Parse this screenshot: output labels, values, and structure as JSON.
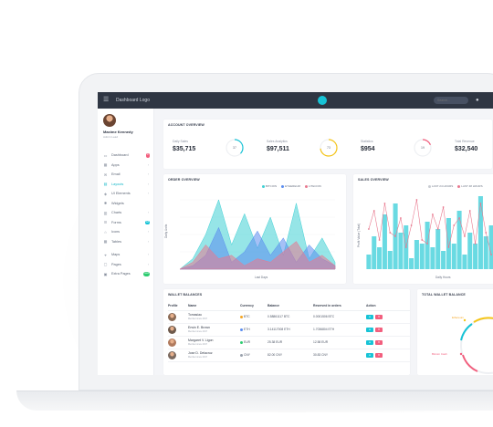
{
  "topbar": {
    "menu_icon": "hamburger-icon",
    "logo": "Dashboard Logo",
    "search_placeholder": "Search...",
    "user_icon": "user-icon",
    "accent": "#17c3d6"
  },
  "profile": {
    "name": "Maxime Kennedy",
    "role": "Admin Lead"
  },
  "nav": [
    {
      "label": "Dashboard",
      "icon": "monitor-icon",
      "badge": "3",
      "badge_color": "#f25f7e"
    },
    {
      "label": "Apps",
      "icon": "apps-icon",
      "chevron": "›"
    },
    {
      "label": "Email",
      "icon": "mail-icon",
      "chevron": "›"
    },
    {
      "label": "Layouts",
      "icon": "layout-icon",
      "chevron": "›",
      "active": true
    },
    {
      "label": "UI Elements",
      "icon": "layers-icon",
      "chevron": "›"
    },
    {
      "label": "Widgets",
      "icon": "widget-icon"
    },
    {
      "label": "Charts",
      "icon": "chart-icon",
      "chevron": "›"
    },
    {
      "label": "Forms",
      "icon": "form-icon",
      "badge": "18",
      "badge_color": "#17c3d6"
    },
    {
      "label": "Icons",
      "icon": "star-icon",
      "chevron": "›"
    },
    {
      "label": "Tables",
      "icon": "table-icon",
      "chevron": "›"
    },
    {
      "label": "Maps",
      "icon": "map-icon",
      "chevron": "›"
    },
    {
      "label": "Pages",
      "icon": "pages-icon",
      "chevron": "›"
    },
    {
      "label": "Extra Pages",
      "icon": "extra-icon",
      "badge": "new",
      "badge_color": "#2ecc71"
    }
  ],
  "account": {
    "title": "ACCOUNT OVERVIEW",
    "stats": [
      {
        "label": "Daily Sales",
        "value": "$35,715",
        "ring_value": "37",
        "ring_color": "#17c3d6",
        "fraction": 0.37
      },
      {
        "label": "Sales Analytics",
        "value": "$97,511",
        "ring_value": "73",
        "ring_color": "#f5c518",
        "fraction": 0.73
      },
      {
        "label": "Statistics",
        "value": "$954",
        "ring_value": "19",
        "ring_color": "#f25f7e",
        "fraction": 0.19
      },
      {
        "label": "Total Revenue",
        "value": "$32,540",
        "ring_value": "",
        "ring_color": "#17c3d6",
        "fraction": 0.5
      }
    ]
  },
  "order": {
    "title": "ORDER OVERVIEW",
    "legend": [
      {
        "name": "BITCOIN",
        "color": "#3fd0d4"
      },
      {
        "name": "ETHEREUM",
        "color": "#5b8def"
      },
      {
        "name": "LITECOIN",
        "color": "#e8798f"
      }
    ],
    "ylabel": "Daily Units",
    "xlabel": "Last Days"
  },
  "sales": {
    "title": "SALES OVERVIEW",
    "legend": [
      {
        "name": "LAST 24 HOURS",
        "color": "#c9ccd2"
      },
      {
        "name": "LAST 48 HOURS",
        "color": "#e8798f"
      }
    ],
    "ylabel": "Profit Value (Total)",
    "xlabel": "Daily Hours"
  },
  "wallet": {
    "title": "WALLET BALANCES",
    "headers": [
      "Profile",
      "Name",
      "Currency",
      "Balance",
      "Reserved in orders",
      "Action"
    ],
    "rows": [
      {
        "name": "Tomasiau",
        "sub": "Member since 2017",
        "currency": "BTC",
        "cur_color": "#f5a623",
        "balance": "0.58861117 BTC",
        "reserved": "0.0001506 BTC",
        "avatar": "#8a6a55"
      },
      {
        "name": "Erwin E. Brown",
        "sub": "Member since 2017",
        "currency": "ETH",
        "cur_color": "#5b8def",
        "balance": "3.14117008 ETH",
        "reserved": "1.7036804 ETH",
        "avatar": "#6e5a4c"
      },
      {
        "name": "Margaret V. Ligon",
        "sub": "Member since 2017",
        "currency": "EUR",
        "cur_color": "#2ecc71",
        "balance": "25.38 EUR",
        "reserved": "12.58 EUR",
        "avatar": "#b07a5e"
      },
      {
        "name": "Jose D. Delacruz",
        "sub": "Member since 2017",
        "currency": "CNY",
        "cur_color": "#9aa1ad",
        "balance": "82.00 CNY",
        "reserved": "30.83 CNY",
        "avatar": "#7b6a60"
      }
    ],
    "view_icon": "eye-icon",
    "delete_icon": "trash-icon"
  },
  "total_wallet": {
    "title": "TOTAL WALLET BALANCE",
    "labels": [
      "Ethereum",
      "Bitcoin Cash"
    ]
  }
}
